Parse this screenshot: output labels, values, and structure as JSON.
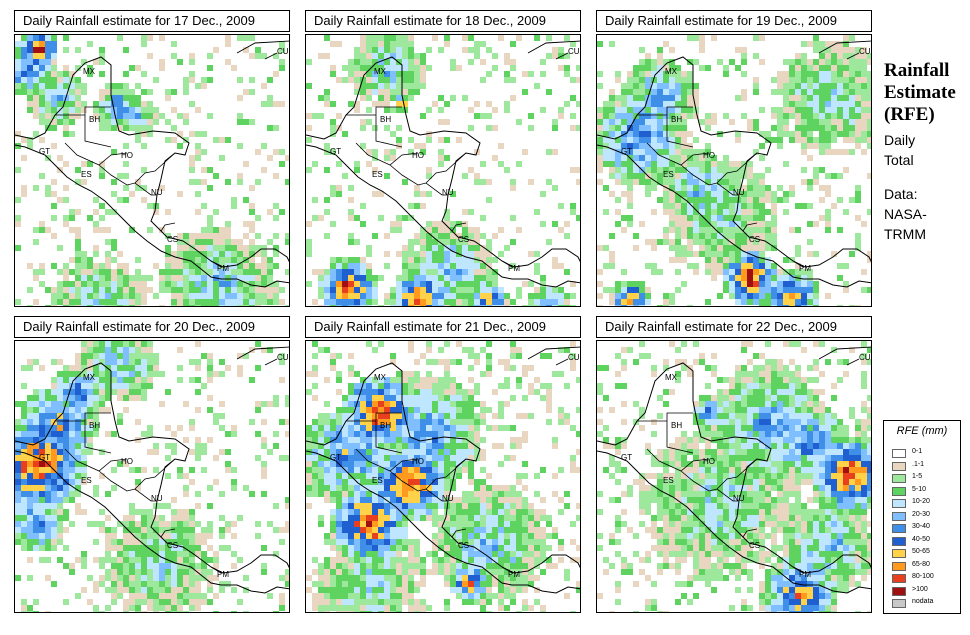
{
  "panels": [
    {
      "title": "Daily Rainfall estimate for  17 Dec., 2009",
      "pattern": "p17"
    },
    {
      "title": "Daily Rainfall estimate for  18 Dec., 2009",
      "pattern": "p18"
    },
    {
      "title": "Daily Rainfall estimate for  19 Dec., 2009",
      "pattern": "p19"
    },
    {
      "title": "Daily Rainfall estimate for  20 Dec., 2009",
      "pattern": "p20"
    },
    {
      "title": "Daily Rainfall estimate for  21 Dec., 2009",
      "pattern": "p21"
    },
    {
      "title": "Daily Rainfall estimate for  22 Dec., 2009",
      "pattern": "p22"
    }
  ],
  "country_labels": [
    "CU",
    "MX",
    "BH",
    "GT",
    "HO",
    "ES",
    "NU",
    "CS",
    "PM"
  ],
  "sidebar": {
    "title_line1": "Rainfall",
    "title_line2": "Estimate",
    "title_line3": "(RFE)",
    "sub1": "Daily",
    "sub2": "Total",
    "sub3": "Data:",
    "sub4": "NASA-",
    "sub5": "TRMM"
  },
  "legend": {
    "title": "RFE (mm)",
    "items": [
      {
        "label": "0-1",
        "color": "#ffffff"
      },
      {
        "label": ".1-1",
        "color": "#e8d6c0"
      },
      {
        "label": "1-5",
        "color": "#9ee89e"
      },
      {
        "label": "5-10",
        "color": "#5fd35f"
      },
      {
        "label": "10-20",
        "color": "#bfe6ff"
      },
      {
        "label": "20-30",
        "color": "#7fbfff"
      },
      {
        "label": "30-40",
        "color": "#3f8fe8"
      },
      {
        "label": "40-50",
        "color": "#1f5fd0"
      },
      {
        "label": "50-65",
        "color": "#ffd24a"
      },
      {
        "label": "65-80",
        "color": "#ff9a1f"
      },
      {
        "label": "80-100",
        "color": "#e8401f"
      },
      {
        "label": ">100",
        "color": "#a01010"
      },
      {
        "label": "nodata",
        "color": "#c8c8c8"
      }
    ]
  }
}
